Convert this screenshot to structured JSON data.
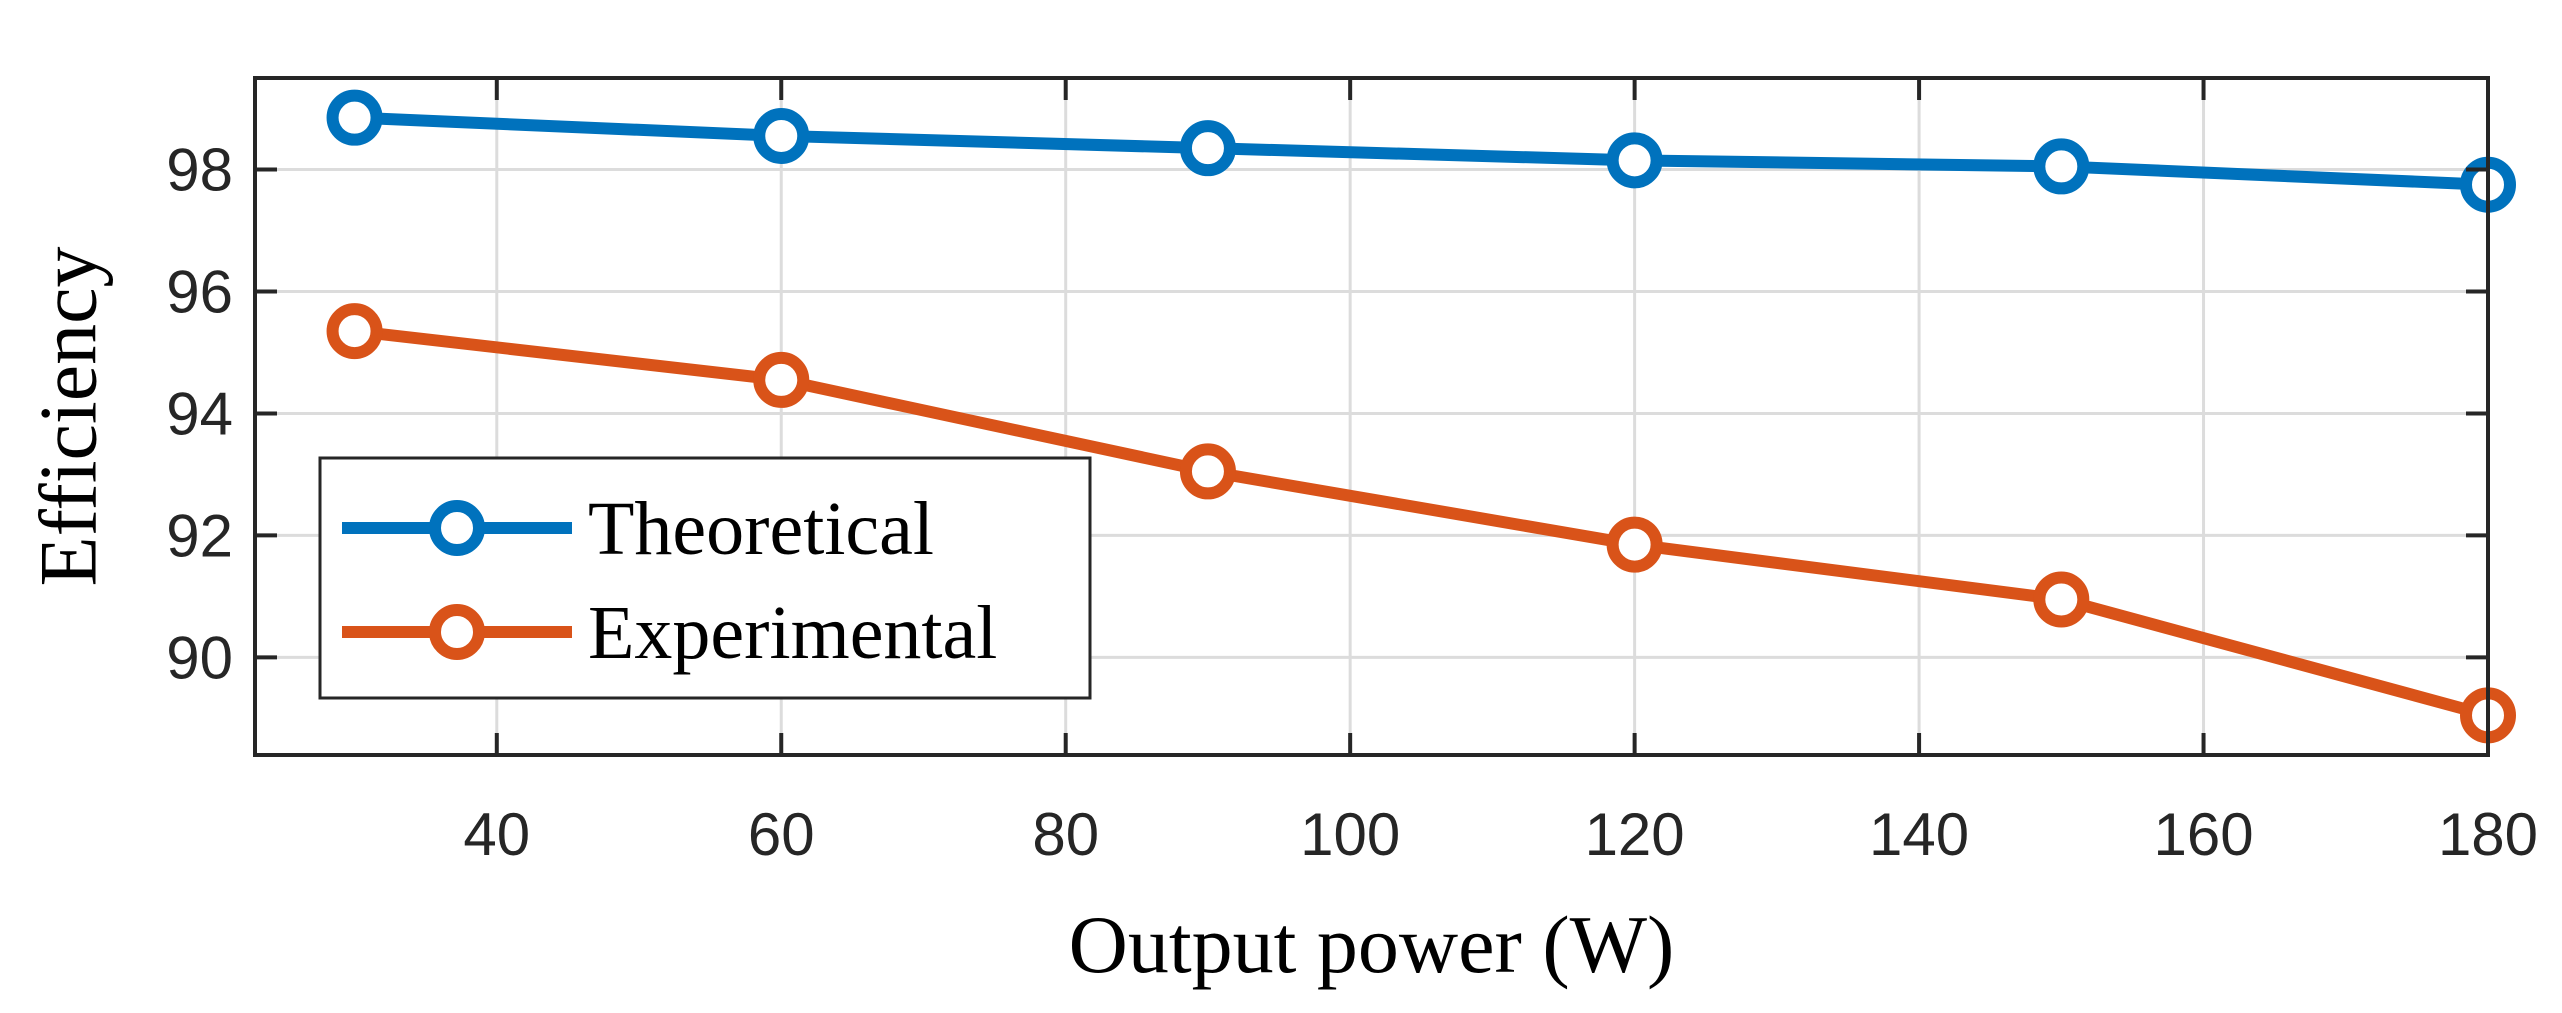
{
  "chart_data": {
    "type": "line",
    "title": "",
    "xlabel": "Output power (W)",
    "ylabel": "Efficiency",
    "xlim": [
      23,
      180
    ],
    "ylim": [
      88.4,
      99.5
    ],
    "xticks": [
      40,
      60,
      80,
      100,
      120,
      140,
      160,
      180
    ],
    "yticks": [
      90,
      92,
      94,
      96,
      98
    ],
    "grid": true,
    "legend_position": "center-left",
    "x": [
      30,
      60,
      90,
      120,
      150,
      180
    ],
    "series": [
      {
        "name": "Theoretical",
        "color": "#0072BD",
        "values": [
          98.85,
          98.55,
          98.35,
          98.15,
          98.05,
          97.75
        ]
      },
      {
        "name": "Experimental",
        "color": "#D95319",
        "values": [
          95.35,
          94.55,
          93.05,
          91.85,
          90.95,
          89.05
        ]
      }
    ]
  }
}
